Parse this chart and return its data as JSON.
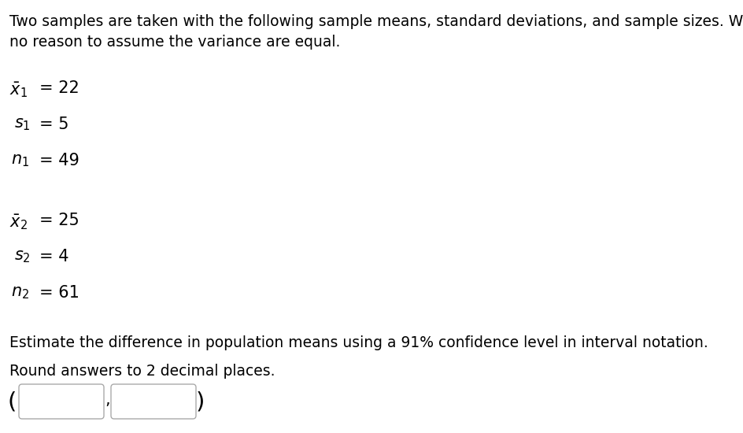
{
  "bg_color": "#ffffff",
  "text_color": "#000000",
  "figsize": [
    9.44,
    5.5
  ],
  "dpi": 100,
  "paragraph1": "Two samples are taken with the following sample means, standard deviations, and sample sizes. We have\nno reason to assume the variance are equal.",
  "line1_label": "$\\bar{x}_1$",
  "line1_value": "= 22",
  "line2_label": "$s_1$",
  "line2_value": "= 5",
  "line3_label": "$n_1$",
  "line3_value": "= 49",
  "line4_label": "$\\bar{x}_2$",
  "line4_value": "= 25",
  "line5_label": "$s_2$",
  "line5_value": "= 4",
  "line6_label": "$n_2$",
  "line6_value": "= 61",
  "question_text": "Estimate the difference in population means using a 91% confidence level in interval notation.",
  "round_text": "Round answers to 2 decimal places.",
  "font_size_body": 13.5,
  "font_size_math": 15
}
